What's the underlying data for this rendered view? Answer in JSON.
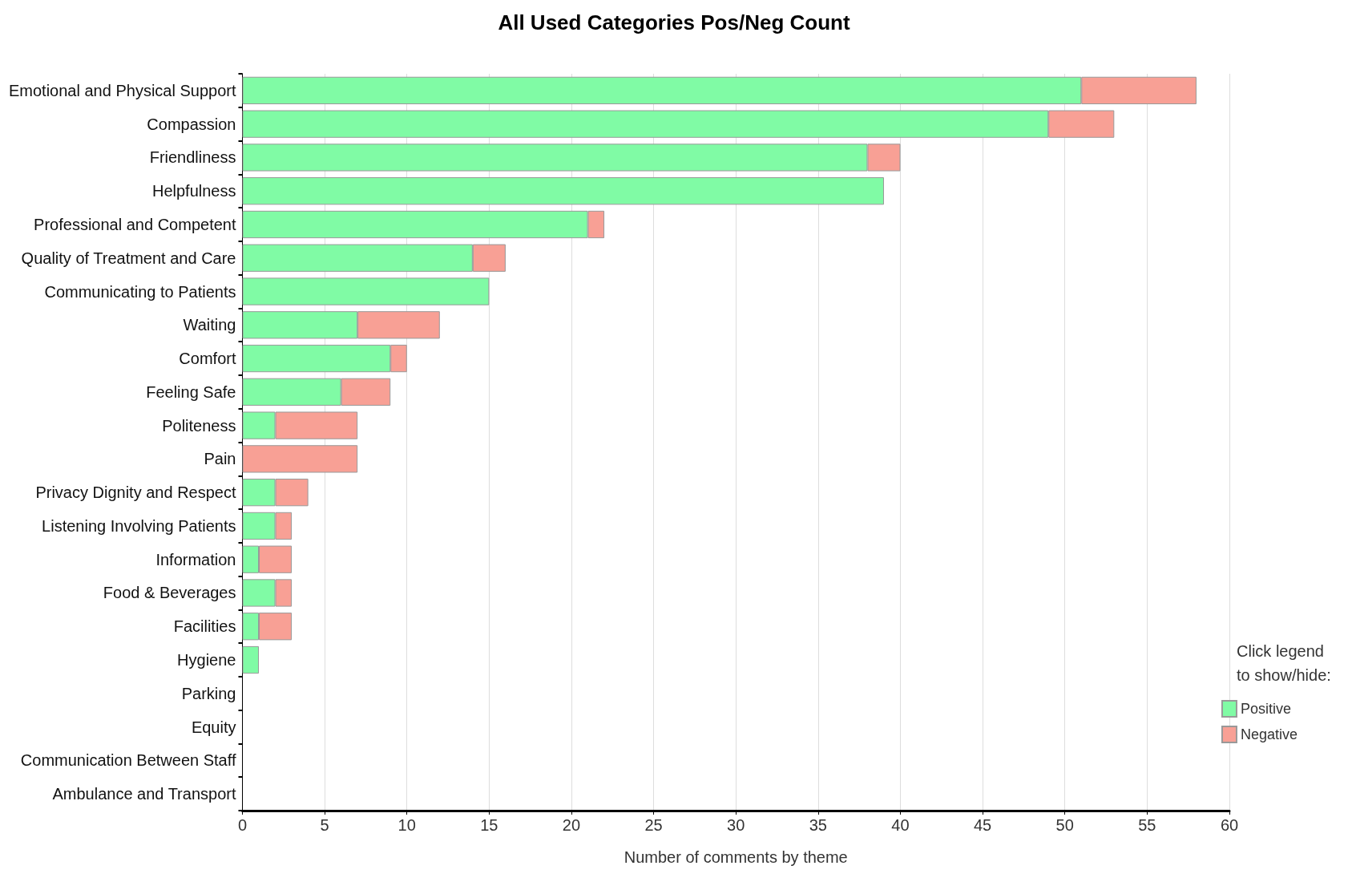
{
  "chart_data": {
    "type": "bar",
    "orientation": "horizontal",
    "stacked": true,
    "title": "All Used Categories Pos/Neg Count",
    "xlabel": "Number of comments by theme",
    "legend_title": "Click legend to show/hide:",
    "legend": "right",
    "grid": "x",
    "categories": [
      "Emotional and Physical Support",
      "Compassion",
      "Friendliness",
      "Helpfulness",
      "Professional and Competent",
      "Quality of Treatment and Care",
      "Communicating to Patients",
      "Waiting",
      "Comfort",
      "Feeling Safe",
      "Politeness",
      "Pain",
      "Privacy Dignity and Respect",
      "Listening Involving Patients",
      "Information",
      "Food & Beverages",
      "Facilities",
      "Hygiene",
      "Parking",
      "Equity",
      "Communication Between Staff",
      "Ambulance and Transport"
    ],
    "series": [
      {
        "name": "Positive",
        "color": "#80fba5",
        "values": [
          51,
          49,
          38,
          39,
          21,
          14,
          15,
          7,
          9,
          6,
          2,
          0,
          2,
          2,
          1,
          2,
          1,
          1,
          0,
          0,
          0,
          0
        ]
      },
      {
        "name": "Negative",
        "color": "#f8a095",
        "values": [
          7,
          4,
          2,
          0,
          1,
          2,
          0,
          5,
          1,
          3,
          5,
          7,
          2,
          1,
          2,
          1,
          2,
          0,
          0,
          0,
          0,
          0
        ]
      }
    ],
    "xlim": [
      0,
      60
    ],
    "xticks": [
      0,
      5,
      10,
      15,
      20,
      25,
      30,
      35,
      40,
      45,
      50,
      55,
      60
    ]
  }
}
